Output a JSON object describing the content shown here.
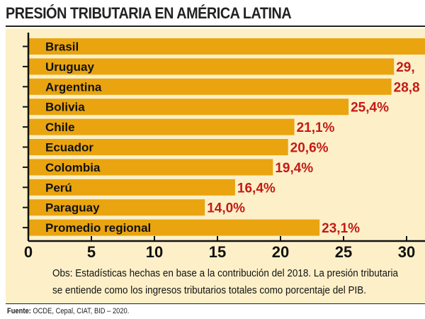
{
  "title": "PRESIÓN TRIBUTARIA EN AMÉRICA LATINA",
  "colors": {
    "bar": "#e9a410",
    "value_text": "#c41a16",
    "panel": "#fdf0c8",
    "axis": "#111111"
  },
  "chart_data": {
    "type": "bar",
    "orientation": "horizontal",
    "categories": [
      "Brasil",
      "Uruguay",
      "Argentina",
      "Bolivia",
      "Chile",
      "Ecuador",
      "Colombia",
      "Perú",
      "Paraguay",
      "Promedio regional"
    ],
    "values": [
      33.1,
      29.0,
      28.8,
      25.4,
      21.1,
      20.6,
      19.4,
      16.4,
      14.0,
      23.1
    ],
    "value_labels": [
      "",
      "29,",
      "28,8",
      "25,4%",
      "21,1%",
      "20,6%",
      "19,4%",
      "16,4%",
      "14,0%",
      "23,1%"
    ],
    "xlim": [
      0,
      30.9
    ],
    "x_ticks": [
      0,
      5,
      10,
      15,
      20,
      25,
      30
    ],
    "x_tick_labels": [
      "0",
      "5",
      "10",
      "15",
      "20",
      "25",
      "30"
    ],
    "title": "PRESIÓN TRIBUTARIA EN AMÉRICA LATINA",
    "xlabel": "",
    "ylabel": "",
    "grid": false,
    "legend": "none"
  },
  "note": {
    "line1": "Obs: Estadísticas hechas en base a la contribución del 2018. La presión tributaria",
    "line2": "se entiende como los ingresos tributarios totales como porcentaje del PIB."
  },
  "source": {
    "label": "Fuente:",
    "text": "OCDE, Cepal, CIAT, BID – 2020."
  }
}
